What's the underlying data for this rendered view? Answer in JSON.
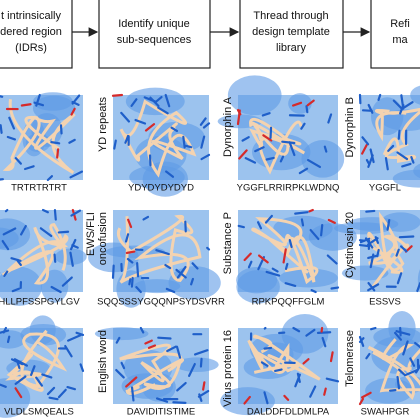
{
  "steps": [
    {
      "lines": [
        "t intrinsically",
        "dered region",
        "(IDRs)"
      ]
    },
    {
      "lines": [
        "Identify unique",
        "sub-sequences"
      ]
    },
    {
      "lines": [
        "Thread through",
        "design template",
        "library"
      ]
    },
    {
      "lines": [
        "Refi",
        "ma"
      ]
    }
  ],
  "panels": [
    {
      "sequence": "TRTRTRTRT"
    },
    {
      "name": [
        "YD repeats"
      ],
      "sequence": "YDYDYDYDYD"
    },
    {
      "name": [
        "Dynorphin A"
      ],
      "sequence": "YGGFLRRIRPKLWDNQ"
    },
    {
      "name": [
        "Dynorphin B"
      ],
      "sequence": "YGGFL"
    },
    {
      "sequence": "HLLPFSSPGYLGV"
    },
    {
      "name": [
        "EWS/FLI",
        "oncofusion"
      ],
      "sequence": "SQQSSSYGQQNPSYDSVRR"
    },
    {
      "name": [
        "Substance P"
      ],
      "sequence": "RPKPQQFFGLM"
    },
    {
      "name": [
        "Cystinosin 20"
      ],
      "sequence": "ESSVS"
    },
    {
      "sequence": "VLDLSMQEALS"
    },
    {
      "name": [
        "English word"
      ],
      "sequence": "DAVIDITISTIME"
    },
    {
      "name": [
        "Virus protein 16"
      ],
      "sequence": "DALDDFDLDMLPA"
    },
    {
      "name": [
        "Telomerase"
      ],
      "sequence": "SWAHPGR"
    }
  ]
}
